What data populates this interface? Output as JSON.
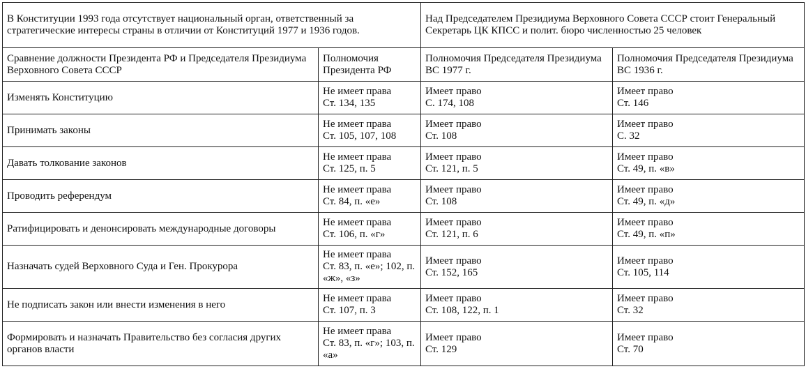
{
  "intro": {
    "left": "В Конституции 1993 года отсутствует национальный орган, ответственный за стратегические интересы страны в отличии от Конституций 1977 и 1936 годов.",
    "right": "Над Председателем Президиума Верховного Совета СССР стоит Генеральный Секретарь ЦК КПСС и полит. бюро численностью 25 человек"
  },
  "headers": [
    "Сравнение должности Президента РФ и Председателя Президиума Верховного Совета СССР",
    "Полномочия Президента РФ",
    "Полномочия Председателя Президиума ВС 1977 г.",
    "Полномочия Председателя Президиума ВС 1936 г."
  ],
  "rows": [
    {
      "power": "Изменять Конституцию",
      "rf": [
        "Не имеет права",
        "Ст. 134, 135"
      ],
      "s1977": [
        "Имеет право",
        "С. 174, 108"
      ],
      "s1936": [
        "Имеет право",
        "Ст. 146"
      ]
    },
    {
      "power": "Принимать законы",
      "rf": [
        "Не имеет права",
        "Ст. 105, 107, 108"
      ],
      "s1977": [
        "Имеет право",
        "Ст. 108"
      ],
      "s1936": [
        "Имеет право",
        "С. 32"
      ]
    },
    {
      "power": "Давать толкование законов",
      "rf": [
        "Не имеет права",
        "Ст. 125, п. 5"
      ],
      "s1977": [
        "Имеет право",
        "Ст. 121, п. 5"
      ],
      "s1936": [
        "Имеет право",
        "Ст. 49, п. «в»"
      ]
    },
    {
      "power": "Проводить референдум",
      "rf": [
        "Не имеет права",
        "Ст. 84, п. «е»"
      ],
      "s1977": [
        "Имеет право",
        "Ст. 108"
      ],
      "s1936": [
        "Имеет право",
        "Ст. 49, п. «д»"
      ]
    },
    {
      "power": "Ратифицировать и денонсировать международные договоры",
      "rf": [
        "Не имеет права",
        "Ст. 106, п. «г»"
      ],
      "s1977": [
        "Имеет право",
        "Ст. 121, п. 6"
      ],
      "s1936": [
        "Имеет право",
        "Ст. 49, п. «п»"
      ]
    },
    {
      "power": "Назначать судей Верховного Суда и Ген. Прокурора",
      "rf": [
        "Не имеет права",
        "Ст. 83, п. «е»; 102, п. «ж», «з»"
      ],
      "s1977": [
        "Имеет право",
        "Ст. 152, 165"
      ],
      "s1936": [
        "Имеет право",
        "Ст. 105, 114"
      ]
    },
    {
      "power": "Не подписать закон или внести изменения в него",
      "rf": [
        "Не имеет права",
        "Ст. 107, п. 3"
      ],
      "s1977": [
        "Имеет право",
        "Ст. 108, 122, п. 1"
      ],
      "s1936": [
        "Имеет право",
        "Ст. 32"
      ]
    },
    {
      "power": "Формировать и назначать Правительство без согласия других органов власти",
      "rf": [
        "Не имеет права",
        "Ст. 83, п. «г»; 103, п. «а»"
      ],
      "s1977": [
        "Имеет право",
        "Ст. 129"
      ],
      "s1936": [
        "Имеет право",
        "Ст. 70"
      ]
    }
  ]
}
